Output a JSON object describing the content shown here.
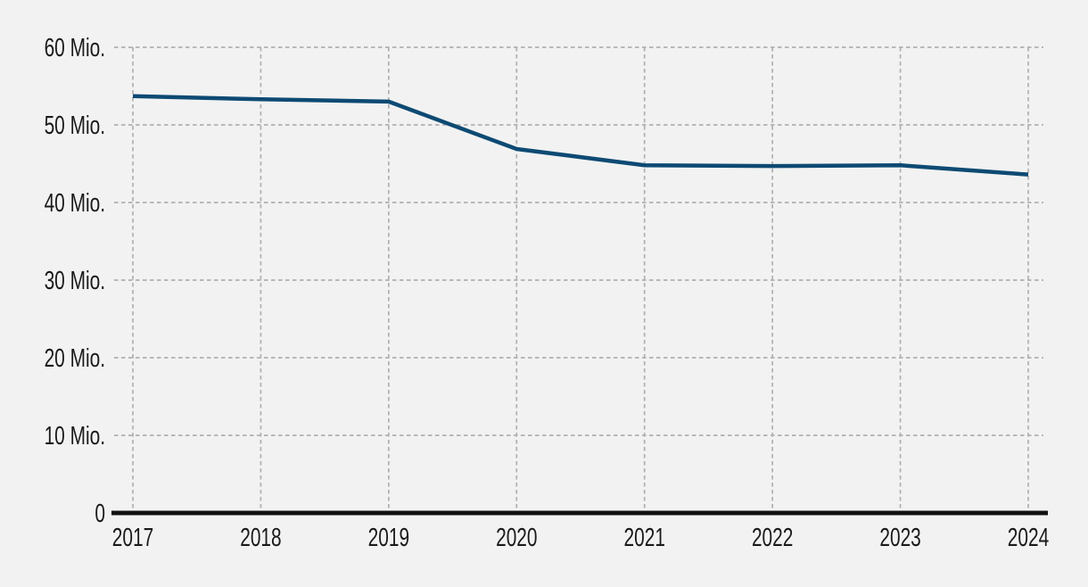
{
  "page": {
    "background_color": "#f2f2f2"
  },
  "chart_data": {
    "type": "line",
    "x": [
      "2017",
      "2018",
      "2019",
      "2020",
      "2021",
      "2022",
      "2023",
      "2024"
    ],
    "series": [
      {
        "name": "value-mio",
        "color": "#0d4a73",
        "values": [
          53.7,
          53.3,
          53.0,
          46.9,
          44.8,
          44.7,
          44.8,
          43.6
        ]
      }
    ],
    "unit": "Mio.",
    "ylim": [
      0,
      60
    ],
    "y_ticks": [
      {
        "value": 0,
        "label": "0"
      },
      {
        "value": 10,
        "label": "10 Mio."
      },
      {
        "value": 20,
        "label": "20 Mio."
      },
      {
        "value": 30,
        "label": "30 Mio."
      },
      {
        "value": 40,
        "label": "40 Mio."
      },
      {
        "value": 50,
        "label": "50 Mio."
      },
      {
        "value": 60,
        "label": "60 Mio."
      }
    ],
    "xlabel": "",
    "ylabel": "",
    "grid": true,
    "grid_style": "dashed",
    "legend_position": "none",
    "colors": {
      "grid": "#b0b0b0",
      "axis": "#111111",
      "text": "#1a1a1a",
      "line": "#0d4a73",
      "background": "#f2f2f2"
    }
  }
}
